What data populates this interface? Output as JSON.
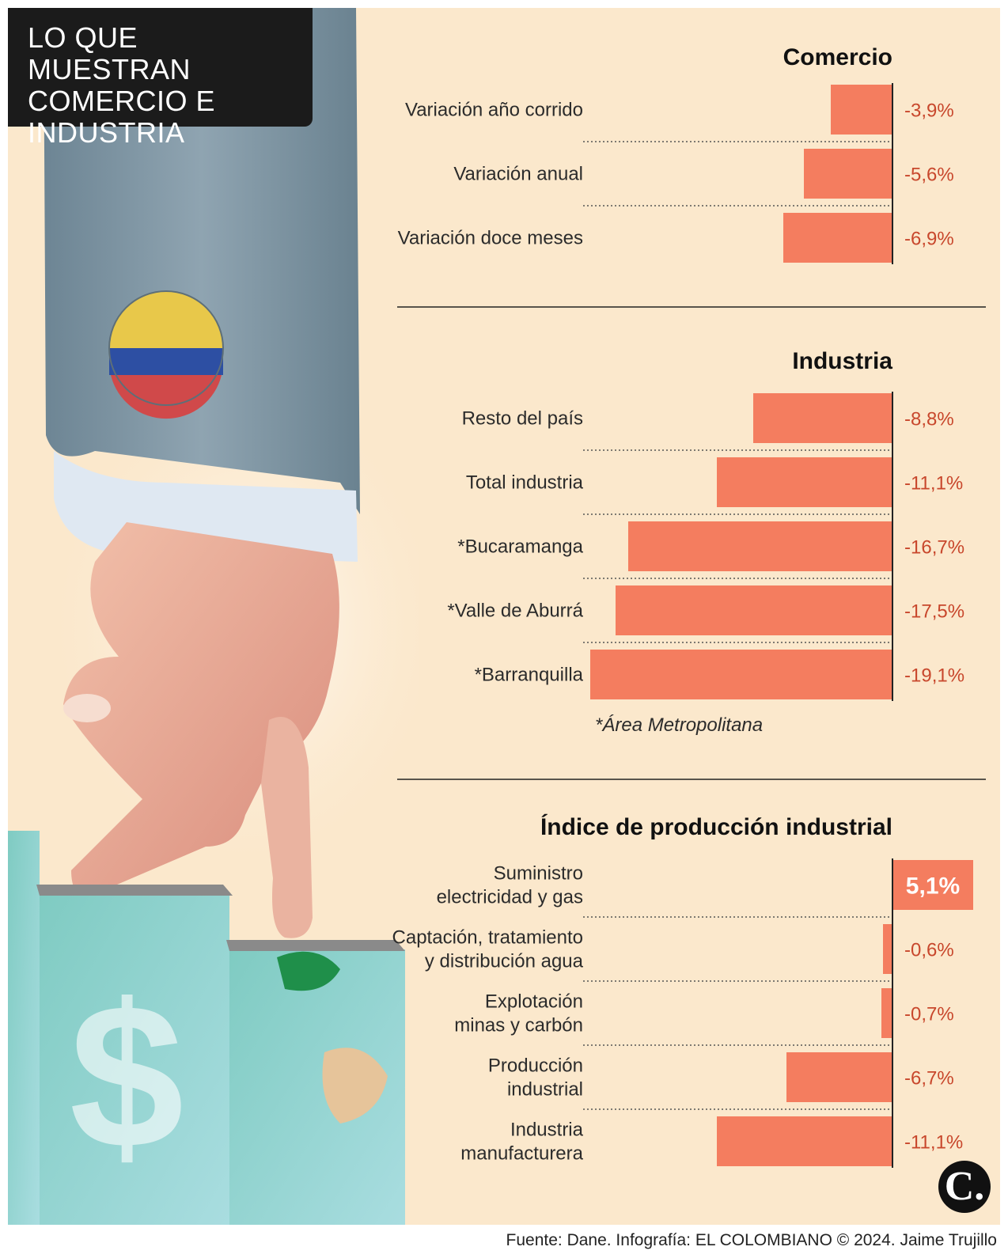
{
  "title": "LO QUE MUESTRAN\nCOMERCIO E\nINDUSTRIA",
  "colors": {
    "bar": "#f47d5f",
    "value_text": "#c8472c",
    "background": "#fbe8cc",
    "title_box": "#1b1b1b"
  },
  "icons": {
    "logo": "el-colombiano-logo-icon",
    "illustration": "hand-walking-down-stairs-illustration"
  },
  "logo_letter": "C.",
  "chart_data": [
    {
      "type": "bar",
      "orientation": "horizontal",
      "title": "Comercio",
      "categories": [
        "Variación año corrido",
        "Variación anual",
        "Variación doce meses"
      ],
      "values": [
        -3.9,
        -5.6,
        -6.9
      ],
      "value_labels": [
        "-3,9%",
        "-5,6%",
        "-6,9%"
      ],
      "unit": "%",
      "note": ""
    },
    {
      "type": "bar",
      "orientation": "horizontal",
      "title": "Industria",
      "categories": [
        "Resto del país",
        "Total industria",
        "*Bucaramanga",
        "*Valle de Aburrá",
        "*Barranquilla"
      ],
      "values": [
        -8.8,
        -11.1,
        -16.7,
        -17.5,
        -19.1
      ],
      "value_labels": [
        "-8,8%",
        "-11,1%",
        "-16,7%",
        "-17,5%",
        "-19,1%"
      ],
      "unit": "%",
      "note": "*Área Metropolitana"
    },
    {
      "type": "bar",
      "orientation": "horizontal",
      "title": "Índice de producción industrial",
      "categories": [
        "Suministro\nelectricidad y gas",
        "Captación, tratamiento\ny distribución agua",
        "Explotación\nminas y carbón",
        "Producción\nindustrial",
        "Industria\nmanufacturera"
      ],
      "values": [
        5.1,
        -0.6,
        -0.7,
        -6.7,
        -11.1
      ],
      "value_labels": [
        "5,1%",
        "-0,6%",
        "-0,7%",
        "-6,7%",
        "-11,1%"
      ],
      "unit": "%",
      "note": ""
    }
  ],
  "source": "Fuente: Dane. Infografía: EL COLOMBIANO © 2024. Jaime Trujillo"
}
